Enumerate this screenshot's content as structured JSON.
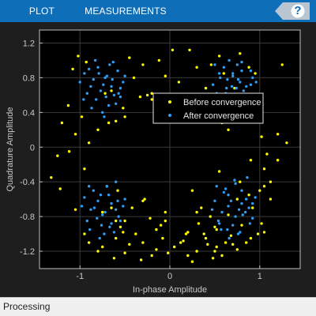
{
  "toolstrip": {
    "tabs": [
      {
        "label": "PLOT"
      },
      {
        "label": "MEASUREMENTS"
      }
    ],
    "help_label": "?",
    "background": "#0e6eb8"
  },
  "status": {
    "text": "Processing"
  },
  "chart_data": {
    "type": "scatter",
    "title": "",
    "xlabel": "In-phase Amplitude",
    "ylabel": "Quadrature Amplitude",
    "xlim": [
      -1.45,
      1.45
    ],
    "ylim": [
      -1.4,
      1.35
    ],
    "xticks": [
      -1,
      0,
      1
    ],
    "xtick_labels": [
      "-1",
      "0",
      "1"
    ],
    "yticks": [
      -1.2,
      -0.8,
      -0.4,
      0,
      0.4,
      0.8,
      1.2
    ],
    "ytick_labels": [
      "-1.2",
      "-0.8",
      "-0.4",
      "0",
      "0.4",
      "0.8",
      "1.2"
    ],
    "grid": true,
    "legend_position": "top-right",
    "background": "#000000",
    "series": [
      {
        "name": "Before convergence",
        "color": "#ffff00",
        "x": [
          -1.02,
          -0.93,
          -0.45,
          -0.12,
          0.03,
          0.22,
          0.55,
          0.78,
          0.88,
          -1.08,
          -0.3,
          -0.05,
          0.3,
          0.46,
          0.95,
          -0.65,
          -0.4,
          -0.25,
          0.1,
          0.6,
          -1.13,
          -0.72,
          -0.2,
          0.4,
          0.72,
          -0.98,
          -0.52,
          -0.2,
          0.58,
          -1.2,
          -0.8,
          -0.5,
          0.62,
          1.2,
          -1.05,
          -0.6,
          -0.33,
          0.65,
          1.02,
          1.3,
          -0.9,
          1.08,
          1.2,
          -1.12,
          -0.68,
          0.55,
          0.9,
          1.05,
          1.12,
          -1.32,
          0.88,
          1.05,
          -1.22,
          -0.95,
          0.78,
          1.12,
          -0.58,
          -0.3,
          0.25,
          0.92,
          -0.42,
          -0.22,
          0.3,
          0.75,
          1.0,
          -0.1,
          0.45,
          0.65,
          1.02,
          -1.05,
          -0.65,
          -0.28,
          0.32,
          0.52,
          0.8,
          -0.95,
          -0.55,
          -0.05,
          0.2,
          0.4,
          0.68,
          1.05,
          -0.9,
          -0.6,
          -0.3,
          0.18,
          0.42,
          0.9,
          -0.75,
          -0.45,
          -0.15,
          0.12,
          0.52,
          0.75,
          0.98,
          -0.8,
          -0.5,
          -0.2,
          0.05,
          0.3,
          0.58,
          0.85,
          -0.62,
          -0.32,
          -0.02,
          0.2,
          0.48,
          0.62,
          -0.52,
          -0.38,
          -0.08,
          0.15,
          0.38,
          0.7,
          -0.6,
          -0.15,
          0.5,
          -0.05,
          0.35,
          -0.7,
          -0.5,
          0.5,
          0.25,
          -1.25,
          -0.75,
          1.25
        ],
        "y": [
          1.05,
          0.98,
          1.03,
          1.0,
          1.12,
          1.12,
          1.05,
          1.08,
          0.92,
          0.9,
          0.95,
          0.82,
          0.92,
          0.95,
          0.85,
          0.65,
          0.8,
          0.6,
          0.75,
          0.85,
          0.48,
          0.62,
          0.55,
          0.68,
          0.68,
          0.35,
          0.45,
          0.62,
          0.28,
          0.28,
          0.2,
          0.35,
          0.55,
          0.15,
          0.15,
          0.3,
          0.58,
          0.2,
          0.12,
          0.05,
          0.05,
          -0.08,
          -0.15,
          -0.05,
          0.28,
          -0.28,
          -0.15,
          -0.25,
          -0.4,
          -0.35,
          -0.55,
          -0.45,
          -0.48,
          -0.25,
          -0.4,
          -0.6,
          -0.5,
          -0.62,
          -0.5,
          -0.7,
          -0.7,
          -0.82,
          -0.75,
          -0.6,
          -0.5,
          -0.9,
          -0.8,
          -0.78,
          -0.88,
          -0.72,
          -0.7,
          -0.6,
          -0.88,
          -0.95,
          -0.9,
          -1.0,
          -0.92,
          -0.85,
          -0.98,
          -1.05,
          -1.02,
          -0.98,
          -1.1,
          -1.05,
          -1.1,
          -1.0,
          -1.12,
          -1.05,
          -1.15,
          -1.12,
          -1.18,
          -1.1,
          -1.15,
          -1.18,
          -1.0,
          -1.2,
          -1.22,
          -1.25,
          -1.15,
          -1.2,
          -1.25,
          -1.1,
          -1.28,
          -1.3,
          -1.22,
          -1.25,
          -1.28,
          -1.1,
          -0.98,
          -1.0,
          -1.05,
          -1.08,
          -1.0,
          -1.12,
          -0.85,
          -0.95,
          -0.92,
          -0.75,
          -0.7,
          -0.45,
          -0.85,
          -1.2,
          -1.32,
          -0.1,
          -0.75,
          0.95
        ]
      },
      {
        "name": "After convergence",
        "color": "#2d9cf5",
        "x": [
          -1.0,
          -0.95,
          -0.88,
          -0.8,
          -0.72,
          -0.65,
          -0.58,
          -0.52,
          -0.92,
          -0.85,
          -0.77,
          -0.7,
          -0.62,
          -0.55,
          -0.9,
          -0.82,
          -0.74,
          -0.67,
          -0.6,
          -0.87,
          -0.79,
          -0.71,
          -0.64,
          -0.57,
          -0.5,
          -0.96,
          -0.75,
          -0.68,
          -0.83,
          -0.63,
          -0.73,
          -0.55,
          0.48,
          0.56,
          0.63,
          0.7,
          0.78,
          0.85,
          0.92,
          0.52,
          0.6,
          0.67,
          0.75,
          0.82,
          0.9,
          0.55,
          0.64,
          0.72,
          0.8,
          0.88,
          0.96,
          0.58,
          0.66,
          0.74,
          0.83,
          0.5,
          0.62,
          0.7,
          0.8,
          0.9,
          0.69,
          0.76,
          -0.95,
          -0.88,
          -0.8,
          -0.72,
          -0.65,
          -0.57,
          -0.5,
          -0.92,
          -0.84,
          -0.76,
          -0.68,
          -0.6,
          -0.52,
          -0.89,
          -0.81,
          -0.73,
          -0.65,
          -0.58,
          -0.85,
          -0.77,
          -0.7,
          -0.62,
          -0.55,
          -0.98,
          -0.9,
          -0.78,
          -0.67,
          -0.75,
          -0.6,
          0.5,
          0.58,
          0.65,
          0.73,
          0.8,
          0.88,
          0.95,
          0.54,
          0.62,
          0.7,
          0.77,
          0.85,
          0.92,
          0.57,
          0.65,
          0.73,
          0.81,
          0.89,
          0.6,
          0.68,
          0.76,
          0.84,
          0.92,
          0.47,
          0.55,
          0.64,
          0.72,
          0.8,
          0.66,
          0.78,
          0.52,
          0.86
        ],
        "y": [
          0.75,
          0.85,
          0.7,
          0.92,
          0.8,
          0.7,
          0.88,
          0.75,
          0.62,
          0.78,
          0.65,
          0.82,
          0.6,
          0.68,
          0.9,
          0.55,
          0.72,
          0.95,
          0.5,
          0.45,
          0.85,
          0.58,
          0.78,
          0.62,
          0.82,
          0.55,
          0.4,
          0.48,
          1.0,
          0.98,
          0.35,
          0.58,
          0.72,
          0.8,
          0.68,
          0.85,
          0.75,
          0.7,
          0.8,
          0.62,
          0.92,
          0.58,
          0.95,
          0.65,
          0.72,
          0.85,
          0.78,
          0.5,
          0.88,
          0.6,
          0.75,
          0.45,
          1.0,
          0.68,
          0.55,
          0.95,
          0.62,
          0.82,
          0.98,
          0.88,
          0.7,
          0.78,
          -0.58,
          -0.72,
          -0.62,
          -0.75,
          -0.65,
          -0.8,
          -0.6,
          -0.85,
          -0.7,
          -0.9,
          -0.55,
          -0.72,
          -0.68,
          -0.95,
          -0.82,
          -1.0,
          -0.88,
          -0.62,
          -0.5,
          -0.55,
          -0.45,
          -0.98,
          -0.85,
          -0.68,
          -0.45,
          -1.05,
          -0.92,
          -0.78,
          -0.4,
          -0.62,
          -0.75,
          -0.55,
          -0.8,
          -0.65,
          -0.7,
          -0.58,
          -0.85,
          -0.48,
          -0.9,
          -0.72,
          -0.6,
          -0.82,
          -0.95,
          -0.68,
          -0.42,
          -0.78,
          -0.88,
          -0.52,
          -0.62,
          -1.0,
          -0.75,
          -0.65,
          -0.72,
          -0.88,
          -0.95,
          -0.38,
          -0.5,
          -1.05,
          -0.98,
          -0.45,
          -0.35
        ]
      }
    ]
  }
}
